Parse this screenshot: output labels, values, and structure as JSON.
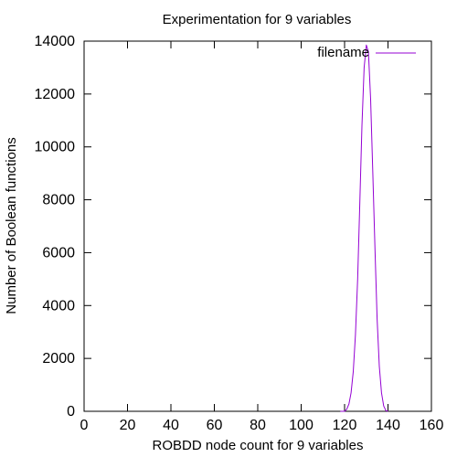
{
  "chart_data": {
    "type": "line",
    "title": "Experimentation for 9 variables",
    "xlabel": "ROBDD node count for 9 variables",
    "ylabel": "Number of Boolean functions",
    "xlim": [
      0,
      160
    ],
    "ylim": [
      0,
      14000
    ],
    "x_ticks": [
      0,
      20,
      40,
      60,
      80,
      100,
      120,
      140,
      160
    ],
    "y_ticks": [
      0,
      2000,
      4000,
      6000,
      8000,
      10000,
      12000,
      14000
    ],
    "grid": false,
    "legend": "top-right",
    "series": [
      {
        "name": "filename",
        "color": "#9400d3",
        "x": [
          118,
          120,
          121,
          122,
          123,
          124,
          125,
          126,
          127,
          128,
          129,
          130,
          131,
          132,
          133,
          134,
          135,
          136,
          137,
          138,
          139,
          140
        ],
        "y": [
          0,
          0,
          80,
          280,
          700,
          1500,
          2900,
          5000,
          7800,
          10800,
          13000,
          13850,
          13600,
          11800,
          9000,
          6100,
          3500,
          1700,
          700,
          200,
          30,
          0
        ]
      }
    ]
  }
}
